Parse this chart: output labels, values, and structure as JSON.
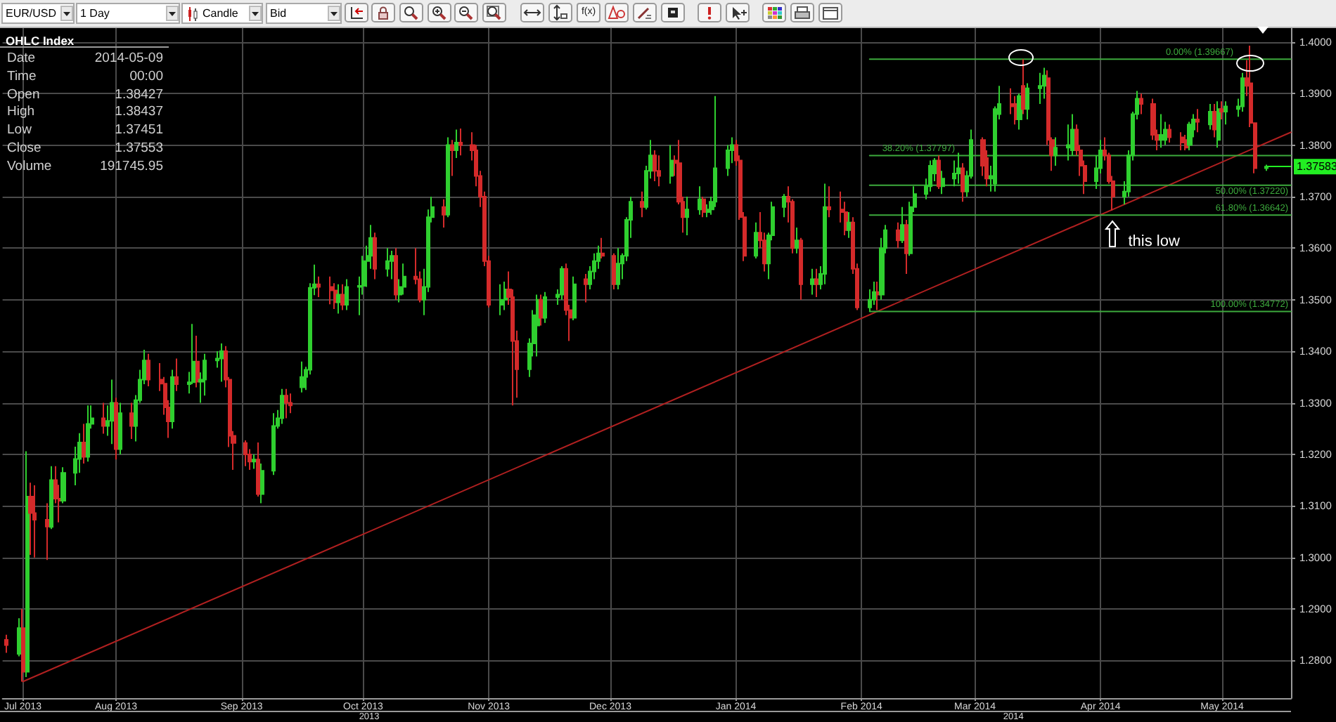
{
  "chart_data": [
    {
      "type": "other",
      "annotations": [
        "EUR/USD",
        "1 Day",
        "Candle",
        "Bid",
        "f(x)"
      ]
    },
    {
      "type": "candlestick",
      "x": [
        "2013-07-05",
        "2013-07-08",
        "2013-07-09",
        "2013-07-10",
        "2013-07-11",
        "2013-07-12",
        "2013-07-15",
        "2013-07-16",
        "2013-07-17",
        "2013-07-18",
        "2013-07-19",
        "2013-07-22",
        "2013-07-23",
        "2013-07-24",
        "2013-07-25",
        "2013-07-26",
        "2013-07-29",
        "2013-07-30",
        "2013-07-31",
        "2013-08-01",
        "2013-08-02",
        "2013-08-05",
        "2013-08-06",
        "2013-08-07",
        "2013-08-08",
        "2013-08-09",
        "2013-08-12",
        "2013-08-13",
        "2013-08-14",
        "2013-08-15",
        "2013-08-16",
        "2013-08-19",
        "2013-08-20",
        "2013-08-21",
        "2013-08-22",
        "2013-08-23",
        "2013-08-26",
        "2013-08-27",
        "2013-08-28",
        "2013-08-29",
        "2013-08-30",
        "2013-09-02",
        "2013-09-03",
        "2013-09-04",
        "2013-09-05",
        "2013-09-06",
        "2013-09-09",
        "2013-09-10",
        "2013-09-11",
        "2013-09-12",
        "2013-09-13",
        "2013-09-16",
        "2013-09-17",
        "2013-09-18",
        "2013-09-19",
        "2013-09-20",
        "2013-09-23",
        "2013-09-24",
        "2013-09-25",
        "2013-09-26",
        "2013-09-27",
        "2013-09-30",
        "2013-10-01",
        "2013-10-02",
        "2013-10-03",
        "2013-10-04",
        "2013-10-07",
        "2013-10-08",
        "2013-10-09",
        "2013-10-10",
        "2013-10-11",
        "2013-10-14",
        "2013-10-15",
        "2013-10-16",
        "2013-10-17",
        "2013-10-18",
        "2013-10-21",
        "2013-10-22",
        "2013-10-23",
        "2013-10-24",
        "2013-10-25",
        "2013-10-28",
        "2013-10-29",
        "2013-10-30",
        "2013-10-31",
        "2013-11-01",
        "2013-11-04",
        "2013-11-05",
        "2013-11-06",
        "2013-11-07",
        "2013-11-08",
        "2013-11-11",
        "2013-11-12",
        "2013-11-13",
        "2013-11-14",
        "2013-11-15",
        "2013-11-18",
        "2013-11-19",
        "2013-11-20",
        "2013-11-21",
        "2013-11-22",
        "2013-11-25",
        "2013-11-26",
        "2013-11-27",
        "2013-11-28",
        "2013-11-29",
        "2013-12-02",
        "2013-12-03",
        "2013-12-04",
        "2013-12-05",
        "2013-12-06",
        "2013-12-09",
        "2013-12-10",
        "2013-12-11",
        "2013-12-12",
        "2013-12-13",
        "2013-12-16",
        "2013-12-17",
        "2013-12-18",
        "2013-12-19",
        "2013-12-20",
        "2013-12-23",
        "2013-12-24",
        "2013-12-25",
        "2013-12-26",
        "2013-12-27",
        "2013-12-30",
        "2013-12-31",
        "2014-01-01",
        "2014-01-02",
        "2014-01-03",
        "2014-01-06",
        "2014-01-07",
        "2014-01-08",
        "2014-01-09",
        "2014-01-10",
        "2014-01-13",
        "2014-01-14",
        "2014-01-15",
        "2014-01-16",
        "2014-01-17",
        "2014-01-20",
        "2014-01-21",
        "2014-01-22",
        "2014-01-23",
        "2014-01-24",
        "2014-01-27",
        "2014-01-28",
        "2014-01-29",
        "2014-01-30",
        "2014-01-31",
        "2014-02-03",
        "2014-02-04",
        "2014-02-05",
        "2014-02-06",
        "2014-02-07",
        "2014-02-10",
        "2014-02-11",
        "2014-02-12",
        "2014-02-13",
        "2014-02-14",
        "2014-02-17",
        "2014-02-18",
        "2014-02-19",
        "2014-02-20",
        "2014-02-21",
        "2014-02-24",
        "2014-02-25",
        "2014-02-26",
        "2014-02-27",
        "2014-02-28",
        "2014-03-03",
        "2014-03-04",
        "2014-03-05",
        "2014-03-06",
        "2014-03-07",
        "2014-03-10",
        "2014-03-11",
        "2014-03-12",
        "2014-03-13",
        "2014-03-14",
        "2014-03-17",
        "2014-03-18",
        "2014-03-19",
        "2014-03-20",
        "2014-03-21",
        "2014-03-24",
        "2014-03-25",
        "2014-03-26",
        "2014-03-27",
        "2014-03-28",
        "2014-03-31",
        "2014-04-01",
        "2014-04-02",
        "2014-04-03",
        "2014-04-04",
        "2014-04-07",
        "2014-04-08",
        "2014-04-09",
        "2014-04-10",
        "2014-04-11",
        "2014-04-14",
        "2014-04-15",
        "2014-04-16",
        "2014-04-17",
        "2014-04-18",
        "2014-04-21",
        "2014-04-22",
        "2014-04-23",
        "2014-04-24",
        "2014-04-25",
        "2014-04-28",
        "2014-04-29",
        "2014-04-30",
        "2014-05-01",
        "2014-05-02",
        "2014-05-05",
        "2014-05-06",
        "2014-05-07",
        "2014-05-08",
        "2014-05-09",
        "2014-05-12"
      ],
      "ohlc": [
        [
          1.284,
          1.285,
          1.2815,
          1.283
        ],
        [
          1.2813,
          1.2882,
          1.2808,
          1.2863
        ],
        [
          1.2863,
          1.29,
          1.2759,
          1.2778
        ],
        [
          1.2778,
          1.3206,
          1.2768,
          1.3118
        ],
        [
          1.3118,
          1.3145,
          1.3005,
          1.3086
        ],
        [
          1.3086,
          1.314,
          1.3,
          1.3073
        ],
        [
          1.3073,
          1.3105,
          1.2995,
          1.306
        ],
        [
          1.3059,
          1.3177,
          1.3055,
          1.315
        ],
        [
          1.315,
          1.3177,
          1.3105,
          1.3114
        ],
        [
          1.3114,
          1.3141,
          1.3068,
          1.311
        ],
        [
          1.311,
          1.3175,
          1.3105,
          1.3164
        ],
        [
          1.3164,
          1.3215,
          1.314,
          1.3191
        ],
        [
          1.3191,
          1.3241,
          1.3164,
          1.3223
        ],
        [
          1.3223,
          1.3259,
          1.3182,
          1.3195
        ],
        [
          1.3195,
          1.3295,
          1.3186,
          1.3259
        ],
        [
          1.3259,
          1.3295,
          1.325,
          1.327
        ],
        [
          1.327,
          1.33,
          1.324,
          1.3255
        ],
        [
          1.3255,
          1.3295,
          1.3236,
          1.3265
        ],
        [
          1.3265,
          1.3345,
          1.322,
          1.33
        ],
        [
          1.33,
          1.331,
          1.319,
          1.321
        ],
        [
          1.321,
          1.33,
          1.32,
          1.328
        ],
        [
          1.328,
          1.33,
          1.323,
          1.3255
        ],
        [
          1.3255,
          1.3315,
          1.3225,
          1.3305
        ],
        [
          1.3305,
          1.3364,
          1.33,
          1.3345
        ],
        [
          1.3345,
          1.3403,
          1.3336,
          1.3382
        ],
        [
          1.3382,
          1.3395,
          1.3332,
          1.3345
        ],
        [
          1.3345,
          1.3377,
          1.3323,
          1.3337
        ],
        [
          1.3337,
          1.335,
          1.3277,
          1.3291
        ],
        [
          1.3291,
          1.3305,
          1.3232,
          1.3264
        ],
        [
          1.3264,
          1.3364,
          1.325,
          1.335
        ],
        [
          1.335,
          1.3386,
          1.3323,
          1.3336
        ],
        [
          1.3336,
          1.336,
          1.3318,
          1.334
        ],
        [
          1.334,
          1.3453,
          1.3336,
          1.338
        ],
        [
          1.338,
          1.343,
          1.333,
          1.3341
        ],
        [
          1.3341,
          1.3359,
          1.33,
          1.3345
        ],
        [
          1.3345,
          1.3395,
          1.3314,
          1.3382
        ],
        [
          1.3382,
          1.34,
          1.3368,
          1.3386
        ],
        [
          1.3386,
          1.3415,
          1.3341,
          1.34
        ],
        [
          1.34,
          1.341,
          1.333,
          1.3345
        ],
        [
          1.3345,
          1.335,
          1.3214,
          1.3236
        ],
        [
          1.3236,
          1.3245,
          1.317,
          1.3222
        ],
        [
          1.3222,
          1.3227,
          1.3177,
          1.32
        ],
        [
          1.32,
          1.321,
          1.317,
          1.3186
        ],
        [
          1.3186,
          1.32,
          1.3172,
          1.319
        ],
        [
          1.319,
          1.3223,
          1.3118,
          1.3123
        ],
        [
          1.3123,
          1.3182,
          1.3105,
          1.3168
        ],
        [
          1.3168,
          1.328,
          1.316,
          1.3255
        ],
        [
          1.3255,
          1.3286,
          1.325,
          1.327
        ],
        [
          1.327,
          1.3327,
          1.3259,
          1.3314
        ],
        [
          1.3314,
          1.3327,
          1.327,
          1.33
        ],
        [
          1.33,
          1.3318,
          1.328,
          1.3295
        ],
        [
          1.333,
          1.338,
          1.332,
          1.335
        ],
        [
          1.335,
          1.337,
          1.3325,
          1.3364
        ],
        [
          1.3364,
          1.3532,
          1.3355,
          1.3523
        ],
        [
          1.3523,
          1.3568,
          1.3509,
          1.353
        ],
        [
          1.353,
          1.3545,
          1.3505,
          1.3525
        ],
        [
          1.3525,
          1.3545,
          1.3491,
          1.3518
        ],
        [
          1.3518,
          1.3532,
          1.3482,
          1.3495
        ],
        [
          1.3495,
          1.353,
          1.3473,
          1.351
        ],
        [
          1.351,
          1.353,
          1.348,
          1.349
        ],
        [
          1.349,
          1.354,
          1.348,
          1.3525
        ],
        [
          1.3525,
          1.3545,
          1.347,
          1.3527
        ],
        [
          1.3527,
          1.3585,
          1.351,
          1.3575
        ],
        [
          1.3575,
          1.3605,
          1.3525,
          1.3585
        ],
        [
          1.3585,
          1.3645,
          1.356,
          1.362
        ],
        [
          1.362,
          1.363,
          1.354,
          1.356
        ],
        [
          1.356,
          1.36,
          1.3545,
          1.3575
        ],
        [
          1.3575,
          1.3595,
          1.354,
          1.3585
        ],
        [
          1.3585,
          1.36,
          1.35,
          1.351
        ],
        [
          1.351,
          1.354,
          1.3495,
          1.3525
        ],
        [
          1.3525,
          1.357,
          1.351,
          1.3545
        ],
        [
          1.3545,
          1.36,
          1.353,
          1.354
        ],
        [
          1.354,
          1.3555,
          1.3495,
          1.35
        ],
        [
          1.35,
          1.356,
          1.347,
          1.3525
        ],
        [
          1.3525,
          1.3675,
          1.3515,
          1.366
        ],
        [
          1.366,
          1.37,
          1.365,
          1.368
        ],
        [
          1.368,
          1.3695,
          1.364,
          1.3665
        ],
        [
          1.3665,
          1.3815,
          1.366,
          1.38
        ],
        [
          1.38,
          1.381,
          1.374,
          1.379
        ],
        [
          1.379,
          1.383,
          1.3775,
          1.3805
        ],
        [
          1.3805,
          1.3832,
          1.378,
          1.38
        ],
        [
          1.38,
          1.3825,
          1.377,
          1.379
        ],
        [
          1.379,
          1.38,
          1.372,
          1.374
        ],
        [
          1.374,
          1.375,
          1.368,
          1.37
        ],
        [
          1.37,
          1.371,
          1.3565,
          1.3575
        ],
        [
          1.3575,
          1.3585,
          1.3485,
          1.349
        ],
        [
          1.349,
          1.353,
          1.347,
          1.35
        ],
        [
          1.35,
          1.3535,
          1.348,
          1.352
        ],
        [
          1.352,
          1.3555,
          1.349,
          1.3505
        ],
        [
          1.3505,
          1.352,
          1.3295,
          1.342
        ],
        [
          1.342,
          1.344,
          1.331,
          1.3365
        ],
        [
          1.3365,
          1.3425,
          1.335,
          1.3415
        ],
        [
          1.3415,
          1.348,
          1.339,
          1.347
        ],
        [
          1.345,
          1.351,
          1.339,
          1.35
        ],
        [
          1.35,
          1.351,
          1.345,
          1.3465
        ],
        [
          1.3465,
          1.3515,
          1.3455,
          1.3505
        ],
        [
          1.3505,
          1.352,
          1.349,
          1.351
        ],
        [
          1.351,
          1.3565,
          1.35,
          1.356
        ],
        [
          1.356,
          1.357,
          1.347,
          1.348
        ],
        [
          1.348,
          1.349,
          1.342,
          1.3465
        ],
        [
          1.3465,
          1.3545,
          1.346,
          1.353
        ],
        [
          1.354,
          1.355,
          1.3495,
          1.353
        ],
        [
          1.353,
          1.3565,
          1.352,
          1.3555
        ],
        [
          1.3555,
          1.359,
          1.354,
          1.3575
        ],
        [
          1.3575,
          1.3605,
          1.356,
          1.359
        ],
        [
          1.359,
          1.362,
          1.358,
          1.3585
        ],
        [
          1.3585,
          1.359,
          1.352,
          1.353
        ],
        [
          1.353,
          1.36,
          1.352,
          1.357
        ],
        [
          1.357,
          1.359,
          1.354,
          1.3585
        ],
        [
          1.3585,
          1.366,
          1.3575,
          1.3655
        ],
        [
          1.3655,
          1.37,
          1.362,
          1.369
        ],
        [
          1.369,
          1.371,
          1.366,
          1.368
        ],
        [
          1.368,
          1.376,
          1.3675,
          1.375
        ],
        [
          1.375,
          1.381,
          1.3735,
          1.378
        ],
        [
          1.378,
          1.379,
          1.373,
          1.375
        ],
        [
          1.375,
          1.378,
          1.372,
          1.374
        ],
        [
          1.374,
          1.38,
          1.3725,
          1.377
        ],
        [
          1.377,
          1.378,
          1.374,
          1.3765
        ],
        [
          1.3765,
          1.381,
          1.3685,
          1.369
        ],
        [
          1.369,
          1.37,
          1.363,
          1.366
        ],
        [
          1.366,
          1.37,
          1.3625,
          1.3675
        ],
        [
          1.3675,
          1.372,
          1.3665,
          1.3695
        ],
        [
          1.3695,
          1.37,
          1.366,
          1.367
        ],
        [
          1.367,
          1.3685,
          1.366,
          1.3675
        ],
        [
          1.3675,
          1.37,
          1.3665,
          1.369
        ],
        [
          1.369,
          1.3895,
          1.368,
          1.3755
        ],
        [
          1.3755,
          1.38,
          1.374,
          1.379
        ],
        [
          1.379,
          1.3815,
          1.3765,
          1.38
        ],
        [
          1.38,
          1.381,
          1.376,
          1.377
        ],
        [
          1.377,
          1.378,
          1.3655,
          1.366
        ],
        [
          1.366,
          1.367,
          1.3575,
          1.3585
        ],
        [
          1.3585,
          1.365,
          1.358,
          1.363
        ],
        [
          1.363,
          1.367,
          1.36,
          1.3615
        ],
        [
          1.3615,
          1.363,
          1.3555,
          1.357
        ],
        [
          1.357,
          1.363,
          1.354,
          1.3625
        ],
        [
          1.3625,
          1.369,
          1.3615,
          1.368
        ],
        [
          1.368,
          1.3705,
          1.366,
          1.37
        ],
        [
          1.37,
          1.372,
          1.365,
          1.369
        ],
        [
          1.369,
          1.3695,
          1.359,
          1.36
        ],
        [
          1.36,
          1.364,
          1.359,
          1.3615
        ],
        [
          1.3615,
          1.362,
          1.35,
          1.353
        ],
        [
          1.353,
          1.356,
          1.351,
          1.354
        ],
        [
          1.354,
          1.356,
          1.3505,
          1.353
        ],
        [
          1.353,
          1.3565,
          1.352,
          1.355
        ],
        [
          1.355,
          1.3725,
          1.353,
          1.368
        ],
        [
          1.368,
          1.372,
          1.366,
          1.3675
        ],
        [
          1.3675,
          1.371,
          1.365,
          1.367
        ],
        [
          1.367,
          1.369,
          1.3625,
          1.3635
        ],
        [
          1.3635,
          1.367,
          1.362,
          1.365
        ],
        [
          1.365,
          1.366,
          1.355,
          1.356
        ],
        [
          1.356,
          1.357,
          1.348,
          1.3485
        ],
        [
          1.3485,
          1.352,
          1.34772,
          1.35
        ],
        [
          1.35,
          1.3535,
          1.349,
          1.3515
        ],
        [
          1.3515,
          1.3535,
          1.348,
          1.351
        ],
        [
          1.351,
          1.362,
          1.35,
          1.36
        ],
        [
          1.36,
          1.3645,
          1.359,
          1.3635
        ],
        [
          1.3635,
          1.365,
          1.36,
          1.3615
        ],
        [
          1.3615,
          1.368,
          1.361,
          1.3645
        ],
        [
          1.3645,
          1.3655,
          1.355,
          1.359
        ],
        [
          1.359,
          1.369,
          1.3585,
          1.368
        ],
        [
          1.368,
          1.372,
          1.367,
          1.3705
        ],
        [
          1.3705,
          1.3735,
          1.3695,
          1.372
        ],
        [
          1.372,
          1.377,
          1.371,
          1.376
        ],
        [
          1.3745,
          1.3775,
          1.373,
          1.377
        ],
        [
          1.377,
          1.378,
          1.3715,
          1.372
        ],
        [
          1.372,
          1.375,
          1.3705,
          1.3735
        ],
        [
          1.3735,
          1.377,
          1.372,
          1.3745
        ],
        [
          1.3745,
          1.3785,
          1.3725,
          1.3755
        ],
        [
          1.3755,
          1.3765,
          1.369,
          1.371
        ],
        [
          1.371,
          1.375,
          1.37,
          1.374
        ],
        [
          1.374,
          1.383,
          1.3735,
          1.381
        ],
        [
          1.381,
          1.3815,
          1.374,
          1.376
        ],
        [
          1.3775,
          1.379,
          1.372,
          1.3735
        ],
        [
          1.3735,
          1.376,
          1.371,
          1.374
        ],
        [
          1.3725,
          1.3875,
          1.371,
          1.387
        ],
        [
          1.386,
          1.3915,
          1.385,
          1.388
        ],
        [
          1.388,
          1.391,
          1.386,
          1.3875
        ],
        [
          1.388,
          1.3895,
          1.384,
          1.385
        ],
        [
          1.385,
          1.39,
          1.383,
          1.3895
        ],
        [
          1.3915,
          1.39667,
          1.386,
          1.387
        ],
        [
          1.387,
          1.392,
          1.385,
          1.391
        ],
        [
          1.391,
          1.394,
          1.388,
          1.3915
        ],
        [
          1.3915,
          1.395,
          1.389,
          1.3935
        ],
        [
          1.393,
          1.3945,
          1.38,
          1.381
        ],
        [
          1.381,
          1.3815,
          1.375,
          1.378
        ],
        [
          1.378,
          1.3815,
          1.376,
          1.3795
        ],
        [
          1.3795,
          1.384,
          1.377,
          1.38
        ],
        [
          1.379,
          1.386,
          1.378,
          1.383
        ],
        [
          1.383,
          1.384,
          1.378,
          1.379
        ],
        [
          1.379,
          1.38,
          1.374,
          1.376
        ],
        [
          1.376,
          1.377,
          1.3705,
          1.373
        ],
        [
          1.373,
          1.378,
          1.3715,
          1.3755
        ],
        [
          1.3755,
          1.381,
          1.3745,
          1.379
        ],
        [
          1.379,
          1.3815,
          1.377,
          1.378
        ],
        [
          1.378,
          1.3785,
          1.3725,
          1.373
        ],
        [
          1.373,
          1.374,
          1.3673,
          1.37
        ],
        [
          1.37,
          1.373,
          1.3685,
          1.371
        ],
        [
          1.371,
          1.379,
          1.37,
          1.378
        ],
        [
          1.378,
          1.3865,
          1.377,
          1.386
        ],
        [
          1.386,
          1.3905,
          1.385,
          1.389
        ],
        [
          1.389,
          1.39,
          1.386,
          1.388
        ],
        [
          1.388,
          1.389,
          1.381,
          1.382
        ],
        [
          1.382,
          1.383,
          1.379,
          1.381
        ],
        [
          1.381,
          1.386,
          1.3795,
          1.382
        ],
        [
          1.381,
          1.3845,
          1.38,
          1.383
        ],
        [
          1.383,
          1.384,
          1.3805,
          1.3815
        ],
        [
          1.3815,
          1.3825,
          1.379,
          1.3805
        ],
        [
          1.381,
          1.382,
          1.379,
          1.3795
        ],
        [
          1.38,
          1.3845,
          1.379,
          1.384
        ],
        [
          1.383,
          1.386,
          1.3815,
          1.385
        ],
        [
          1.385,
          1.387,
          1.3825,
          1.3845
        ],
        [
          1.384,
          1.388,
          1.383,
          1.3865
        ],
        [
          1.3865,
          1.388,
          1.3815,
          1.383
        ],
        [
          1.381,
          1.3885,
          1.3795,
          1.387
        ],
        [
          1.387,
          1.3885,
          1.385,
          1.3865
        ],
        [
          1.3865,
          1.3885,
          1.384,
          1.3875
        ],
        [
          1.387,
          1.389,
          1.3855,
          1.3875
        ],
        [
          1.3875,
          1.394,
          1.3865,
          1.393
        ],
        [
          1.393,
          1.3965,
          1.3895,
          1.3915
        ],
        [
          1.392,
          1.3993,
          1.3835,
          1.3843
        ],
        [
          1.38427,
          1.38437,
          1.37451,
          1.37553
        ],
        [
          1.37553,
          1.3762,
          1.375,
          1.37583
        ]
      ],
      "colors": [
        "#d42a2a",
        "#2fcf2f",
        "#d42a2a",
        "#2fcf2f",
        "#d42a2a",
        "#d42a2a",
        "#d42a2a",
        "#2fcf2f",
        "#d42a2a",
        "#d42a2a",
        "#2fcf2f",
        "#2fcf2f",
        "#2fcf2f",
        "#d42a2a",
        "#2fcf2f",
        "#2fcf2f",
        "#d42a2a",
        "#2fcf2f",
        "#2fcf2f",
        "#d42a2a",
        "#2fcf2f",
        "#d42a2a",
        "#2fcf2f",
        "#2fcf2f",
        "#2fcf2f",
        "#d42a2a",
        "#d42a2a",
        "#d42a2a",
        "#d42a2a",
        "#2fcf2f",
        "#d42a2a",
        "#2fcf2f",
        "#2fcf2f",
        "#d42a2a",
        "#2fcf2f",
        "#2fcf2f",
        "#2fcf2f",
        "#2fcf2f",
        "#d42a2a",
        "#d42a2a",
        "#d42a2a",
        "#d42a2a",
        "#d42a2a",
        "#2fcf2f",
        "#d42a2a",
        "#2fcf2f",
        "#2fcf2f",
        "#2fcf2f",
        "#2fcf2f",
        "#d42a2a",
        "#d42a2a",
        "#2fcf2f",
        "#2fcf2f",
        "#2fcf2f",
        "#2fcf2f",
        "#d42a2a",
        "#d42a2a",
        "#d42a2a",
        "#2fcf2f",
        "#d42a2a",
        "#2fcf2f",
        "#2fcf2f",
        "#2fcf2f",
        "#2fcf2f",
        "#2fcf2f",
        "#d42a2a",
        "#2fcf2f",
        "#2fcf2f",
        "#d42a2a",
        "#2fcf2f",
        "#2fcf2f",
        "#d42a2a",
        "#d42a2a",
        "#2fcf2f",
        "#2fcf2f",
        "#2fcf2f",
        "#d42a2a",
        "#2fcf2f",
        "#d42a2a",
        "#2fcf2f",
        "#d42a2a",
        "#d42a2a",
        "#d42a2a",
        "#d42a2a",
        "#d42a2a",
        "#d42a2a",
        "#2fcf2f",
        "#2fcf2f",
        "#d42a2a",
        "#d42a2a",
        "#d42a2a",
        "#2fcf2f",
        "#2fcf2f",
        "#2fcf2f",
        "#d42a2a",
        "#2fcf2f",
        "#2fcf2f",
        "#2fcf2f",
        "#d42a2a",
        "#d42a2a",
        "#2fcf2f",
        "#d42a2a",
        "#2fcf2f",
        "#2fcf2f",
        "#2fcf2f",
        "#d42a2a",
        "#d42a2a",
        "#2fcf2f",
        "#2fcf2f",
        "#2fcf2f",
        "#2fcf2f",
        "#d42a2a",
        "#2fcf2f",
        "#2fcf2f",
        "#d42a2a",
        "#d42a2a",
        "#2fcf2f",
        "#d42a2a",
        "#d42a2a",
        "#d42a2a",
        "#2fcf2f",
        "#2fcf2f",
        "#d42a2a",
        "#2fcf2f",
        "#2fcf2f",
        "#2fcf2f",
        "#2fcf2f",
        "#2fcf2f",
        "#d42a2a",
        "#d42a2a",
        "#d42a2a",
        "#2fcf2f",
        "#d42a2a",
        "#d42a2a",
        "#2fcf2f",
        "#2fcf2f",
        "#2fcf2f",
        "#d42a2a",
        "#d42a2a",
        "#2fcf2f",
        "#d42a2a",
        "#2fcf2f",
        "#d42a2a",
        "#2fcf2f",
        "#2fcf2f",
        "#d42a2a",
        "#d42a2a",
        "#d42a2a",
        "#2fcf2f",
        "#d42a2a",
        "#d42a2a",
        "#2fcf2f",
        "#2fcf2f",
        "#d42a2a",
        "#2fcf2f",
        "#2fcf2f",
        "#d42a2a",
        "#2fcf2f",
        "#d42a2a",
        "#2fcf2f",
        "#2fcf2f",
        "#2fcf2f",
        "#2fcf2f",
        "#2fcf2f",
        "#d42a2a",
        "#2fcf2f",
        "#2fcf2f",
        "#2fcf2f",
        "#d42a2a",
        "#2fcf2f",
        "#2fcf2f",
        "#d42a2a",
        "#d42a2a",
        "#2fcf2f",
        "#2fcf2f",
        "#2fcf2f",
        "#d42a2a",
        "#d42a2a",
        "#2fcf2f",
        "#d42a2a",
        "#2fcf2f",
        "#2fcf2f",
        "#2fcf2f",
        "#d42a2a",
        "#d42a2a",
        "#2fcf2f",
        "#2fcf2f",
        "#2fcf2f",
        "#d42a2a",
        "#d42a2a",
        "#d42a2a",
        "#2fcf2f",
        "#2fcf2f",
        "#d42a2a",
        "#d42a2a",
        "#d42a2a",
        "#2fcf2f",
        "#2fcf2f",
        "#2fcf2f",
        "#2fcf2f",
        "#d42a2a",
        "#d42a2a",
        "#d42a2a",
        "#2fcf2f",
        "#2fcf2f",
        "#d42a2a",
        "#d42a2a",
        "#d42a2a",
        "#2fcf2f",
        "#2fcf2f",
        "#d42a2a",
        "#2fcf2f",
        "#d42a2a",
        "#2fcf2f",
        "#d42a2a",
        "#2fcf2f",
        "#2fcf2f",
        "#2fcf2f",
        "#d42a2a",
        "#d42a2a",
        "#d42a2a",
        "#2fcf2f"
      ],
      "xlim": [
        "2013-07-04",
        "2014-05-18"
      ],
      "xticks": [
        {
          "value": "2013-07-09",
          "label": "Jul 2013"
        },
        {
          "value": "2013-08-01",
          "label": "Aug 2013"
        },
        {
          "value": "2013-09-01",
          "label": "Sep 2013"
        },
        {
          "value": "2013-10-01",
          "label": "Oct 2013"
        },
        {
          "value": "2013-11-01",
          "label": "Nov 2013"
        },
        {
          "value": "2013-12-01",
          "label": "Dec 2013"
        },
        {
          "value": "2014-01-01",
          "label": "Jan 2014"
        },
        {
          "value": "2014-02-01",
          "label": "Feb 2014"
        },
        {
          "value": "2014-03-01",
          "label": "Mar 2014"
        },
        {
          "value": "2014-04-01",
          "label": "Apr 2014"
        },
        {
          "value": "2014-05-01",
          "label": "May 2014"
        }
      ],
      "ylim": [
        1.2727,
        1.4027
      ],
      "yticks": [
        {
          "value": 1.28,
          "label": "1.2800"
        },
        {
          "value": 1.29,
          "label": "1.2900"
        },
        {
          "value": 1.3,
          "label": "1.3000"
        },
        {
          "value": 1.31,
          "label": "1.3100"
        },
        {
          "value": 1.32,
          "label": "1.3200"
        },
        {
          "value": 1.33,
          "label": "1.3300"
        },
        {
          "value": 1.34,
          "label": "1.3400"
        },
        {
          "value": 1.35,
          "label": "1.3500"
        },
        {
          "value": 1.36,
          "label": "1.3600"
        },
        {
          "value": 1.37,
          "label": "1.3700"
        },
        {
          "value": 1.38,
          "label": "1.3800"
        },
        {
          "value": 1.39,
          "label": "1.3900"
        },
        {
          "value": 1.4,
          "label": "1.4000"
        }
      ],
      "grid": true,
      "series": [
        {
          "type": "line",
          "x": [
            "2013-07-09",
            "2014-05-18"
          ],
          "values": [
            1.2759,
            1.3825
          ],
          "color": "#b02020"
        },
        {
          "type": "line",
          "name": "0.00% (1.39667)",
          "x": [
            "2014-02-03",
            "2014-05-18"
          ],
          "values": [
            1.39667,
            1.39667
          ],
          "color": "#3daa3d"
        },
        {
          "type": "line",
          "name": "38.20% (1.37797)",
          "x": [
            "2014-02-03",
            "2014-05-18"
          ],
          "values": [
            1.37797,
            1.37797
          ],
          "color": "#3daa3d"
        },
        {
          "type": "line",
          "name": "50.00% (1.37220)",
          "x": [
            "2014-02-03",
            "2014-05-18"
          ],
          "values": [
            1.3722,
            1.3722
          ],
          "color": "#3daa3d"
        },
        {
          "type": "line",
          "name": "61.80% (1.36642)",
          "x": [
            "2014-02-03",
            "2014-05-18"
          ],
          "values": [
            1.36642,
            1.36642
          ],
          "color": "#3daa3d"
        },
        {
          "type": "line",
          "name": "100.00% (1.34772)",
          "x": [
            "2014-02-03",
            "2014-05-18"
          ],
          "values": [
            1.34772,
            1.34772
          ],
          "color": "#3daa3d"
        }
      ],
      "ref_lines": [
        {
          "axis": "y",
          "value": 1.37583,
          "label": "1.37583",
          "color": "#22ee22"
        }
      ],
      "annotations": [
        "2013",
        "2014",
        {
          "text": "this low",
          "x": "2014-04-04",
          "y": 1.3673
        }
      ]
    },
    {
      "type": "other",
      "title": "OHLC Index",
      "annotations": [
        "Date",
        "2014-05-09",
        "Time",
        "00:00",
        "Open",
        "1.38427",
        "High",
        "1.38437",
        "Low",
        "1.37451",
        "Close",
        "1.37553",
        "Volume",
        "191745.95"
      ]
    }
  ]
}
